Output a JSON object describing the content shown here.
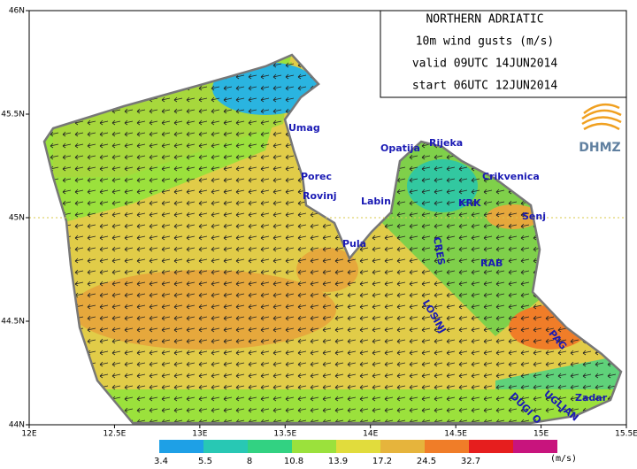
{
  "header": {
    "lines": [
      "NORTHERN ADRIATIC",
      "10m wind gusts (m/s)",
      "valid 09UTC 14JUN2014",
      "start 06UTC 12JUN2014"
    ]
  },
  "logo": "DHMZ",
  "axes": {
    "lon_ticks": [
      {
        "value": 12,
        "label": "12E"
      },
      {
        "value": 12.5,
        "label": "12.5E"
      },
      {
        "value": 13,
        "label": "13E"
      },
      {
        "value": 13.5,
        "label": "13.5E"
      },
      {
        "value": 14,
        "label": "14E"
      },
      {
        "value": 14.5,
        "label": "14.5E"
      },
      {
        "value": 15,
        "label": "15E"
      },
      {
        "value": 15.5,
        "label": "15.5E"
      }
    ],
    "lat_ticks": [
      {
        "value": 44,
        "label": "44N"
      },
      {
        "value": 44.5,
        "label": "44.5N"
      },
      {
        "value": 45,
        "label": "45N"
      },
      {
        "value": 45.5,
        "label": "45.5N"
      },
      {
        "value": 46,
        "label": "46N"
      }
    ]
  },
  "places": [
    "Umag",
    "Porec",
    "Rovinj",
    "Opatija",
    "Rijeka",
    "Crikvenica",
    "Labin",
    "KRK",
    "Senj",
    "Pula",
    "CRES",
    "RAB",
    "LOSINJ",
    "PAG",
    "Zadar",
    "DUGI O",
    "UGLJAN"
  ],
  "colorbar": {
    "colors": [
      "#1ea0e6",
      "#28c8b4",
      "#32d282",
      "#9be13c",
      "#e1dc3c",
      "#e6b43c",
      "#f07d28",
      "#e61e1e",
      "#c8147d"
    ],
    "ticks": [
      3.4,
      5.5,
      8,
      10.8,
      13.9,
      17.2,
      24.5,
      32.7
    ],
    "unit": "(m/s)"
  }
}
